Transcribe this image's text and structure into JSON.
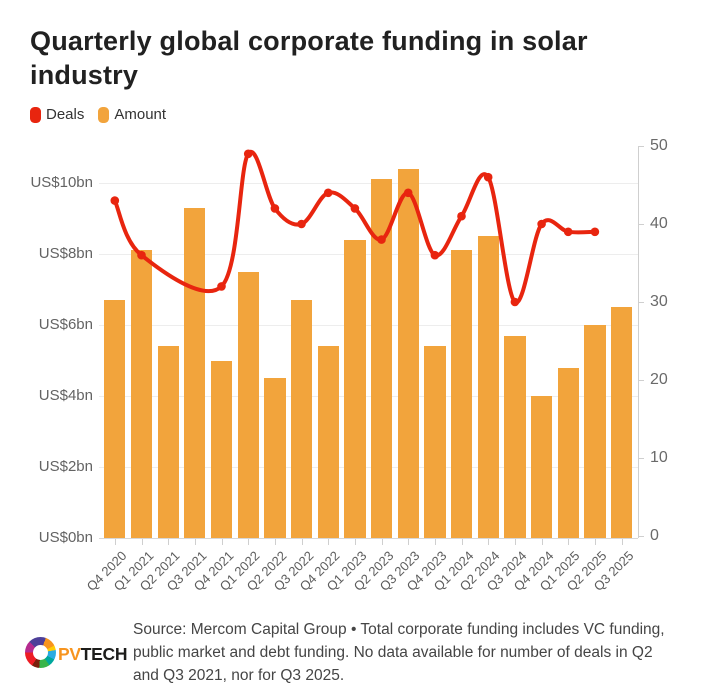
{
  "title": "Quarterly global corporate funding in solar industry",
  "legend": [
    {
      "id": "deals",
      "label": "Deals",
      "color": "#E8250F"
    },
    {
      "id": "amount",
      "label": "Amount",
      "color": "#F2A43C"
    }
  ],
  "chart_data": {
    "type": "combo bar+line",
    "categories": [
      "Q4 2020",
      "Q1 2021",
      "Q2 2021",
      "Q3 2021",
      "Q4 2021",
      "Q1 2022",
      "Q2 2022",
      "Q3 2022",
      "Q4 2022",
      "Q1 2023",
      "Q2 2023",
      "Q3 2023",
      "Q4 2023",
      "Q1 2024",
      "Q2 2024",
      "Q3 2024",
      "Q4 2024",
      "Q1 2025",
      "Q2 2025",
      "Q3 2025"
    ],
    "series": [
      {
        "name": "Amount",
        "type": "bar",
        "axis": "left",
        "color": "#F2A43C",
        "unit": "US$bn",
        "values": [
          6.7,
          8.1,
          5.4,
          9.3,
          5.0,
          7.5,
          4.5,
          6.7,
          5.4,
          8.4,
          10.1,
          10.4,
          5.4,
          8.1,
          8.5,
          5.7,
          4.0,
          4.8,
          6.0,
          6.5
        ]
      },
      {
        "name": "Deals",
        "type": "line",
        "axis": "right",
        "color": "#E8250F",
        "unit": "deals",
        "values": [
          43,
          36,
          null,
          null,
          32,
          49,
          42,
          40,
          44,
          42,
          38,
          44,
          36,
          41,
          46,
          30,
          40,
          39,
          39,
          null
        ]
      }
    ],
    "left_axis": {
      "tick_values": [
        0,
        2,
        4,
        6,
        8,
        10
      ],
      "tick_labels": [
        "US$0bn",
        "US$2bn",
        "US$4bn",
        "US$6bn",
        "US$8bn",
        "US$10bn"
      ],
      "range": [
        0,
        11
      ]
    },
    "right_axis": {
      "tick_values": [
        0,
        10,
        20,
        30,
        40,
        50
      ],
      "tick_labels": [
        "0",
        "10",
        "20",
        "30",
        "40",
        "50"
      ],
      "range": [
        0,
        50
      ]
    },
    "grid": "horizontal-on-left-axis-ticks",
    "legend_position": "top-left"
  },
  "footer": {
    "logo_pv": "PV",
    "logo_tech": "TECH",
    "source_lines": [
      "Source: Mercom Capital Group • Total corporate funding includes VC funding,",
      "public market and debt funding. No data available for number of deals in Q2",
      "and Q3 2021, nor for Q3 2025."
    ]
  }
}
